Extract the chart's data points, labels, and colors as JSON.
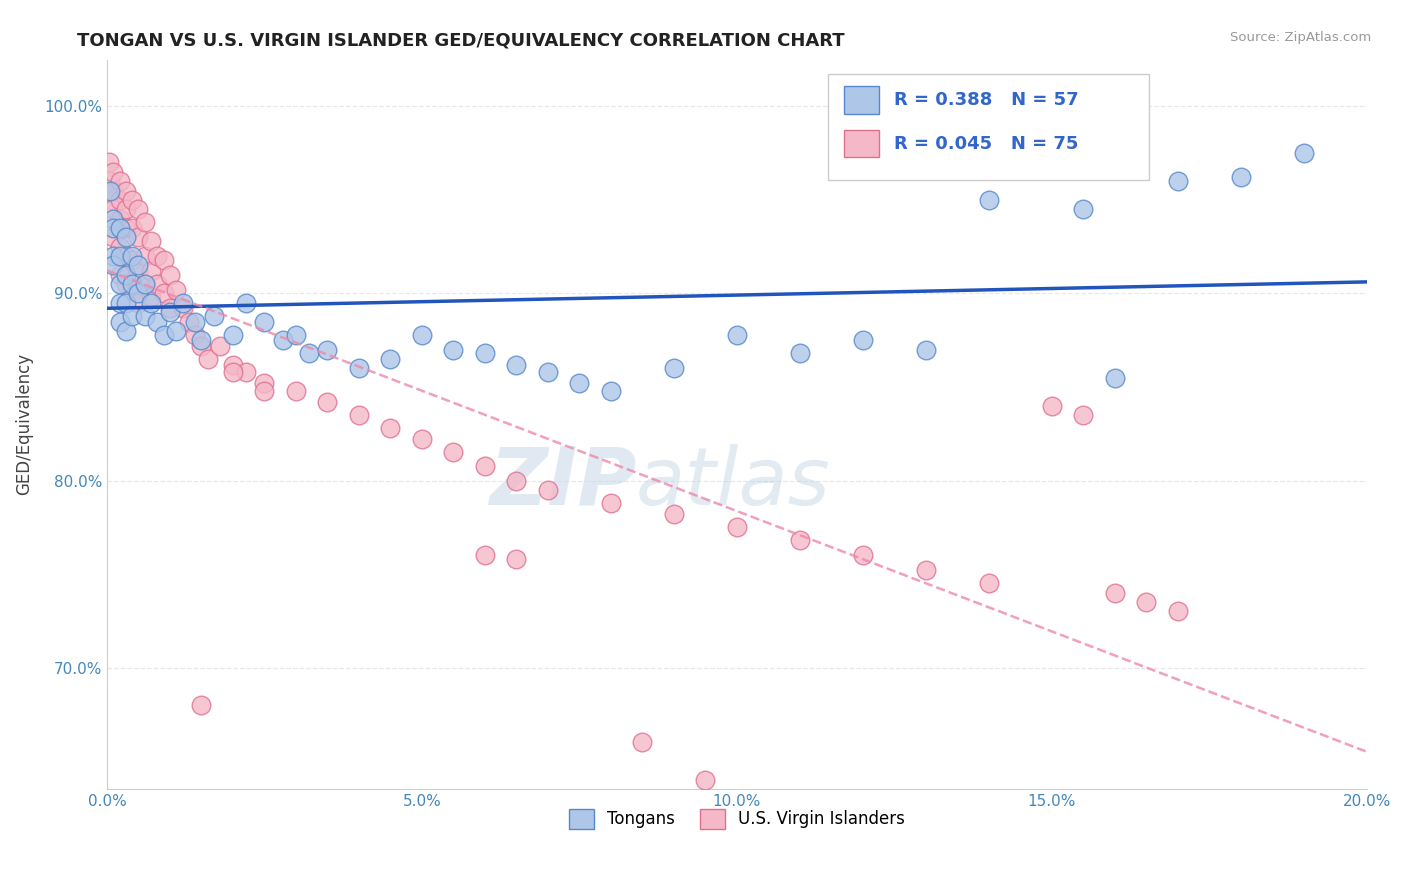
{
  "title": "TONGAN VS U.S. VIRGIN ISLANDER GED/EQUIVALENCY CORRELATION CHART",
  "source": "Source: ZipAtlas.com",
  "ylabel": "GED/Equivalency",
  "xmin": 0.0,
  "xmax": 0.2,
  "ymin": 0.635,
  "ymax": 1.025,
  "xticks": [
    0.0,
    0.05,
    0.1,
    0.15,
    0.2
  ],
  "xticklabels": [
    "0.0%",
    "5.0%",
    "10.0%",
    "15.0%",
    "20.0%"
  ],
  "yticks": [
    0.7,
    0.8,
    0.9,
    1.0
  ],
  "yticklabels": [
    "70.0%",
    "80.0%",
    "90.0%",
    "100.0%"
  ],
  "background_color": "#ffffff",
  "grid_color": "#e8e8e8",
  "tongan_color": "#aec6e8",
  "tongan_edge_color": "#5588cc",
  "virgin_color": "#f4b8c8",
  "virgin_edge_color": "#e07090",
  "tongan_R": 0.388,
  "tongan_N": 57,
  "virgin_R": 0.045,
  "virgin_N": 75,
  "tongan_line_color": "#2255bb",
  "virgin_line_color": "#ee88aa",
  "legend_label_1": "Tongans",
  "legend_label_2": "U.S. Virgin Islanders",
  "watermark_zip": "ZIP",
  "watermark_atlas": "atlas",
  "tongan_scatter_x": [
    0.0005,
    0.001,
    0.001,
    0.001,
    0.001,
    0.002,
    0.002,
    0.002,
    0.002,
    0.002,
    0.003,
    0.003,
    0.003,
    0.003,
    0.004,
    0.004,
    0.004,
    0.005,
    0.005,
    0.006,
    0.006,
    0.007,
    0.008,
    0.009,
    0.01,
    0.011,
    0.012,
    0.014,
    0.015,
    0.017,
    0.02,
    0.022,
    0.025,
    0.028,
    0.03,
    0.032,
    0.035,
    0.04,
    0.045,
    0.05,
    0.055,
    0.06,
    0.065,
    0.07,
    0.075,
    0.08,
    0.09,
    0.1,
    0.11,
    0.12,
    0.13,
    0.14,
    0.155,
    0.16,
    0.17,
    0.18,
    0.19
  ],
  "tongan_scatter_y": [
    0.955,
    0.94,
    0.935,
    0.92,
    0.915,
    0.935,
    0.92,
    0.905,
    0.895,
    0.885,
    0.93,
    0.91,
    0.895,
    0.88,
    0.92,
    0.905,
    0.888,
    0.915,
    0.9,
    0.905,
    0.888,
    0.895,
    0.885,
    0.878,
    0.89,
    0.88,
    0.895,
    0.885,
    0.875,
    0.888,
    0.878,
    0.895,
    0.885,
    0.875,
    0.878,
    0.868,
    0.87,
    0.86,
    0.865,
    0.878,
    0.87,
    0.868,
    0.862,
    0.858,
    0.852,
    0.848,
    0.86,
    0.878,
    0.868,
    0.875,
    0.87,
    0.95,
    0.945,
    0.855,
    0.96,
    0.962,
    0.975
  ],
  "virgin_scatter_x": [
    0.0003,
    0.0005,
    0.0008,
    0.001,
    0.001,
    0.001,
    0.001,
    0.002,
    0.002,
    0.002,
    0.002,
    0.002,
    0.003,
    0.003,
    0.003,
    0.003,
    0.003,
    0.004,
    0.004,
    0.004,
    0.004,
    0.005,
    0.005,
    0.005,
    0.005,
    0.006,
    0.006,
    0.006,
    0.007,
    0.007,
    0.007,
    0.008,
    0.008,
    0.009,
    0.009,
    0.01,
    0.01,
    0.011,
    0.012,
    0.013,
    0.014,
    0.015,
    0.016,
    0.018,
    0.02,
    0.022,
    0.025,
    0.03,
    0.035,
    0.04,
    0.045,
    0.05,
    0.055,
    0.06,
    0.065,
    0.07,
    0.08,
    0.09,
    0.1,
    0.11,
    0.12,
    0.13,
    0.14,
    0.15,
    0.155,
    0.16,
    0.165,
    0.17,
    0.02,
    0.025,
    0.06,
    0.065,
    0.015,
    0.085,
    0.095
  ],
  "virgin_scatter_y": [
    0.97,
    0.96,
    0.95,
    0.965,
    0.955,
    0.945,
    0.93,
    0.96,
    0.95,
    0.94,
    0.925,
    0.91,
    0.955,
    0.945,
    0.935,
    0.92,
    0.905,
    0.95,
    0.935,
    0.918,
    0.902,
    0.945,
    0.93,
    0.912,
    0.895,
    0.938,
    0.92,
    0.905,
    0.928,
    0.912,
    0.898,
    0.92,
    0.905,
    0.918,
    0.9,
    0.91,
    0.892,
    0.902,
    0.892,
    0.885,
    0.878,
    0.872,
    0.865,
    0.872,
    0.862,
    0.858,
    0.852,
    0.848,
    0.842,
    0.835,
    0.828,
    0.822,
    0.815,
    0.808,
    0.8,
    0.795,
    0.788,
    0.782,
    0.775,
    0.768,
    0.76,
    0.752,
    0.745,
    0.84,
    0.835,
    0.74,
    0.735,
    0.73,
    0.858,
    0.848,
    0.76,
    0.758,
    0.68,
    0.66,
    0.64
  ]
}
